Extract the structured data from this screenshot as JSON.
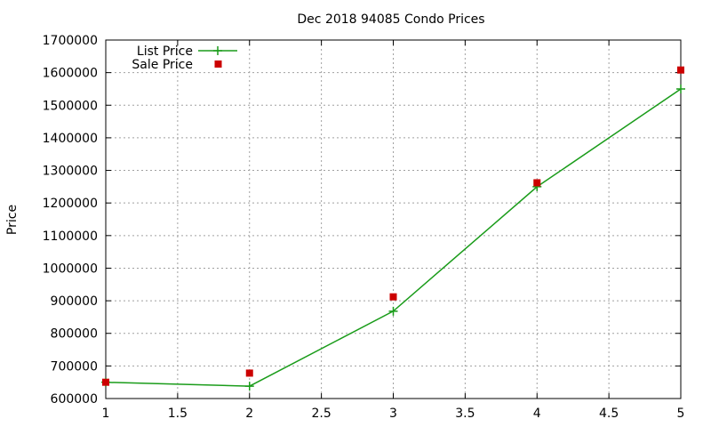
{
  "chart_data": {
    "type": "line",
    "title": "Dec 2018 94085 Condo Prices",
    "xlabel": "",
    "ylabel": "Price",
    "xlim": [
      1,
      5
    ],
    "ylim": [
      600000,
      1700000
    ],
    "xticks": [
      "1",
      "1.5",
      "2",
      "2.5",
      "3",
      "3.5",
      "4",
      "4.5",
      "5"
    ],
    "yticks": [
      "600000",
      "700000",
      "800000",
      "900000",
      "1000000",
      "1100000",
      "1200000",
      "1300000",
      "1400000",
      "1500000",
      "1600000",
      "1700000"
    ],
    "grid": true,
    "legend_position": "top-left",
    "series": [
      {
        "name": "List Price",
        "style": "line-with-plus-markers",
        "color": "#1a9c1a",
        "x": [
          1,
          2,
          3,
          4,
          5
        ],
        "y": [
          650000,
          638000,
          868000,
          1250000,
          1550000
        ]
      },
      {
        "name": "Sale Price",
        "style": "square-points",
        "color": "#cc0000",
        "x": [
          1,
          2,
          3,
          4,
          5
        ],
        "y": [
          650000,
          678000,
          912000,
          1262000,
          1608000
        ]
      }
    ]
  }
}
